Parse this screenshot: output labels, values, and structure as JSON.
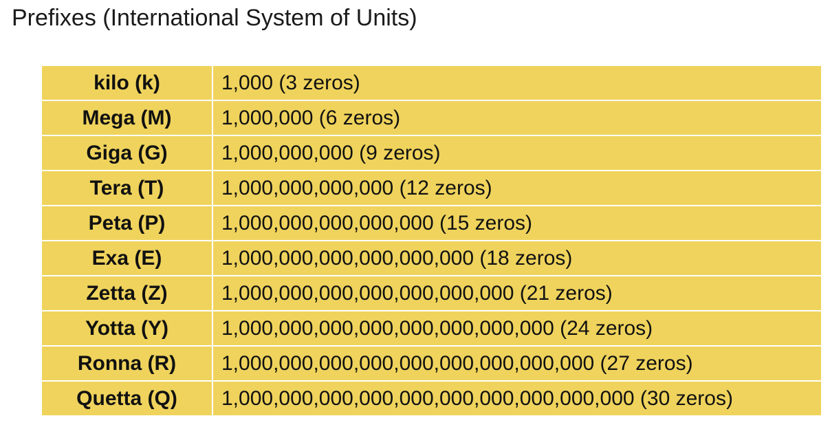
{
  "title": "Prefixes (International System of Units)",
  "colors": {
    "table_background": "#efd35c",
    "divider": "#ffffff",
    "text": "#111111"
  },
  "prefixes": [
    {
      "name": "kilo (k)",
      "value": "1,000 (3 zeros)"
    },
    {
      "name": "Mega (M)",
      "value": "1,000,000 (6 zeros)"
    },
    {
      "name": "Giga (G)",
      "value": "1,000,000,000 (9 zeros)"
    },
    {
      "name": "Tera (T)",
      "value": "1,000,000,000,000 (12 zeros)"
    },
    {
      "name": "Peta (P)",
      "value": "1,000,000,000,000,000 (15 zeros)"
    },
    {
      "name": "Exa (E)",
      "value": "1,000,000,000,000,000,000 (18 zeros)"
    },
    {
      "name": "Zetta (Z)",
      "value": "1,000,000,000,000,000,000,000 (21 zeros)"
    },
    {
      "name": "Yotta (Y)",
      "value": "1,000,000,000,000,000,000,000,000 (24 zeros)"
    },
    {
      "name": "Ronna (R)",
      "value": "1,000,000,000,000,000,000,000,000,000 (27 zeros)"
    },
    {
      "name": "Quetta (Q)",
      "value": "1,000,000,000,000,000,000,000,000,000,000 (30 zeros)"
    }
  ]
}
